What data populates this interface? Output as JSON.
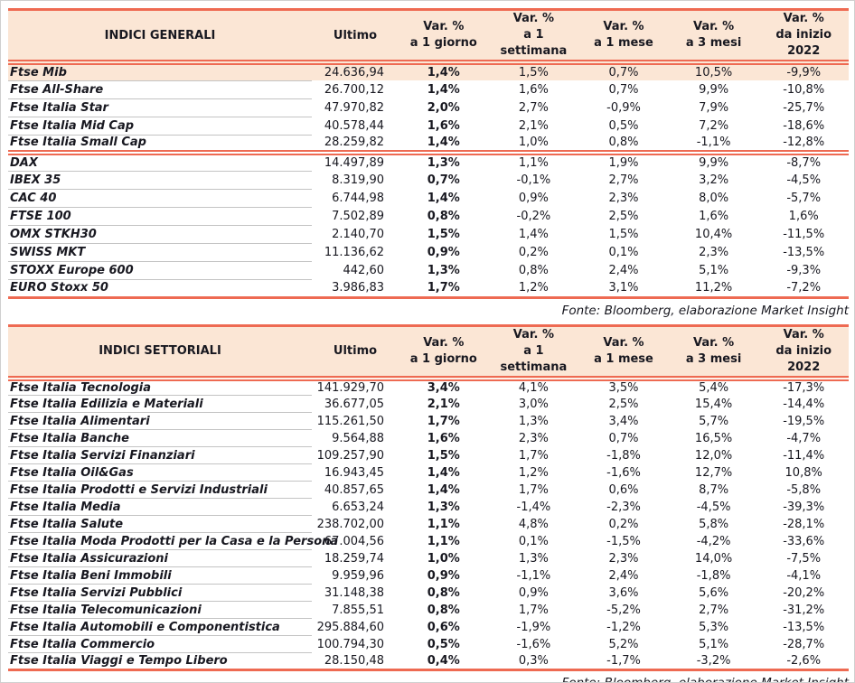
{
  "colors": {
    "accent_line": "#ee6a52",
    "header_background": "#fbe6d5",
    "highlight_row_background": "#fbe6d5",
    "text": "#181820",
    "row_separator": "#c3c3c3"
  },
  "source_note": "Fonte: Bloomberg, elaborazione Market Insight",
  "column_headers": {
    "ultimo": "Ultimo",
    "var_columns": [
      {
        "line1": "Var. %",
        "line2": "a 1 giorno"
      },
      {
        "line1": "Var. %",
        "line2": "a 1 settimana"
      },
      {
        "line1": "Var. %",
        "line2": "a 1 mese"
      },
      {
        "line1": "Var. %",
        "line2": "a 3 mesi"
      },
      {
        "line1": "Var. %",
        "line2": "da inizio 2022"
      }
    ]
  },
  "tables": [
    {
      "title": "INDICI GENERALI",
      "rows": [
        {
          "name": "Ftse Mib",
          "ultimo": "24.636,94",
          "d1": "1,4%",
          "w1": "1,5%",
          "m1": "0,7%",
          "m3": "10,5%",
          "ytd": "-9,9%",
          "highlight": true
        },
        {
          "name": "Ftse All-Share",
          "ultimo": "26.700,12",
          "d1": "1,4%",
          "w1": "1,6%",
          "m1": "0,7%",
          "m3": "9,9%",
          "ytd": "-10,8%"
        },
        {
          "name": "Ftse Italia Star",
          "ultimo": "47.970,82",
          "d1": "2,0%",
          "w1": "2,7%",
          "m1": "-0,9%",
          "m3": "7,9%",
          "ytd": "-25,7%"
        },
        {
          "name": "Ftse Italia Mid Cap",
          "ultimo": "40.578,44",
          "d1": "1,6%",
          "w1": "2,1%",
          "m1": "0,5%",
          "m3": "7,2%",
          "ytd": "-18,6%"
        },
        {
          "name": "Ftse Italia Small Cap",
          "ultimo": "28.259,82",
          "d1": "1,4%",
          "w1": "1,0%",
          "m1": "0,8%",
          "m3": "-1,1%",
          "ytd": "-12,8%",
          "divider_after": true
        },
        {
          "name": "DAX",
          "ultimo": "14.497,89",
          "d1": "1,3%",
          "w1": "1,1%",
          "m1": "1,9%",
          "m3": "9,9%",
          "ytd": "-8,7%"
        },
        {
          "name": "IBEX 35",
          "ultimo": "8.319,90",
          "d1": "0,7%",
          "w1": "-0,1%",
          "m1": "2,7%",
          "m3": "3,2%",
          "ytd": "-4,5%"
        },
        {
          "name": "CAC 40",
          "ultimo": "6.744,98",
          "d1": "1,4%",
          "w1": "0,9%",
          "m1": "2,3%",
          "m3": "8,0%",
          "ytd": "-5,7%"
        },
        {
          "name": "FTSE 100",
          "ultimo": "7.502,89",
          "d1": "0,8%",
          "w1": "-0,2%",
          "m1": "2,5%",
          "m3": "1,6%",
          "ytd": "1,6%"
        },
        {
          "name": "OMX STKH30",
          "ultimo": "2.140,70",
          "d1": "1,5%",
          "w1": "1,4%",
          "m1": "1,5%",
          "m3": "10,4%",
          "ytd": "-11,5%"
        },
        {
          "name": "SWISS MKT",
          "ultimo": "11.136,62",
          "d1": "0,9%",
          "w1": "0,2%",
          "m1": "0,1%",
          "m3": "2,3%",
          "ytd": "-13,5%"
        },
        {
          "name": "STOXX Europe 600",
          "ultimo": "442,60",
          "d1": "1,3%",
          "w1": "0,8%",
          "m1": "2,4%",
          "m3": "5,1%",
          "ytd": "-9,3%"
        },
        {
          "name": "EURO Stoxx 50",
          "ultimo": "3.986,83",
          "d1": "1,7%",
          "w1": "1,2%",
          "m1": "3,1%",
          "m3": "11,2%",
          "ytd": "-7,2%",
          "last": true
        }
      ]
    },
    {
      "title": "INDICI SETTORIALI",
      "rows": [
        {
          "name": "Ftse Italia Tecnologia",
          "ultimo": "141.929,70",
          "d1": "3,4%",
          "w1": "4,1%",
          "m1": "3,5%",
          "m3": "5,4%",
          "ytd": "-17,3%"
        },
        {
          "name": "Ftse Italia Edilizia e Materiali",
          "ultimo": "36.677,05",
          "d1": "2,1%",
          "w1": "3,0%",
          "m1": "2,5%",
          "m3": "15,4%",
          "ytd": "-14,4%"
        },
        {
          "name": "Ftse Italia Alimentari",
          "ultimo": "115.261,50",
          "d1": "1,7%",
          "w1": "1,3%",
          "m1": "3,4%",
          "m3": "5,7%",
          "ytd": "-19,5%"
        },
        {
          "name": "Ftse Italia Banche",
          "ultimo": "9.564,88",
          "d1": "1,6%",
          "w1": "2,3%",
          "m1": "0,7%",
          "m3": "16,5%",
          "ytd": "-4,7%"
        },
        {
          "name": "Ftse Italia Servizi Finanziari",
          "ultimo": "109.257,90",
          "d1": "1,5%",
          "w1": "1,7%",
          "m1": "-1,8%",
          "m3": "12,0%",
          "ytd": "-11,4%"
        },
        {
          "name": "Ftse Italia Oil&Gas",
          "ultimo": "16.943,45",
          "d1": "1,4%",
          "w1": "1,2%",
          "m1": "-1,6%",
          "m3": "12,7%",
          "ytd": "10,8%"
        },
        {
          "name": "Ftse Italia Prodotti e Servizi Industriali",
          "ultimo": "40.857,65",
          "d1": "1,4%",
          "w1": "1,7%",
          "m1": "0,6%",
          "m3": "8,7%",
          "ytd": "-5,8%"
        },
        {
          "name": "Ftse Italia Media",
          "ultimo": "6.653,24",
          "d1": "1,3%",
          "w1": "-1,4%",
          "m1": "-2,3%",
          "m3": "-4,5%",
          "ytd": "-39,3%"
        },
        {
          "name": "Ftse Italia Salute",
          "ultimo": "238.702,00",
          "d1": "1,1%",
          "w1": "4,8%",
          "m1": "0,2%",
          "m3": "5,8%",
          "ytd": "-28,1%"
        },
        {
          "name": "Ftse Italia Moda Prodotti per la Casa e la Persona",
          "ultimo": "67.004,56",
          "d1": "1,1%",
          "w1": "0,1%",
          "m1": "-1,5%",
          "m3": "-4,2%",
          "ytd": "-33,6%"
        },
        {
          "name": "Ftse Italia Assicurazioni",
          "ultimo": "18.259,74",
          "d1": "1,0%",
          "w1": "1,3%",
          "m1": "2,3%",
          "m3": "14,0%",
          "ytd": "-7,5%"
        },
        {
          "name": "Ftse Italia Beni Immobili",
          "ultimo": "9.959,96",
          "d1": "0,9%",
          "w1": "-1,1%",
          "m1": "2,4%",
          "m3": "-1,8%",
          "ytd": "-4,1%"
        },
        {
          "name": "Ftse Italia Servizi Pubblici",
          "ultimo": "31.148,38",
          "d1": "0,8%",
          "w1": "0,9%",
          "m1": "3,6%",
          "m3": "5,6%",
          "ytd": "-20,2%"
        },
        {
          "name": "Ftse Italia Telecomunicazioni",
          "ultimo": "7.855,51",
          "d1": "0,8%",
          "w1": "1,7%",
          "m1": "-5,2%",
          "m3": "2,7%",
          "ytd": "-31,2%"
        },
        {
          "name": "Ftse Italia Automobili e Componentistica",
          "ultimo": "295.884,60",
          "d1": "0,6%",
          "w1": "-1,9%",
          "m1": "-1,2%",
          "m3": "5,3%",
          "ytd": "-13,5%"
        },
        {
          "name": "Ftse Italia Commercio",
          "ultimo": "100.794,30",
          "d1": "0,5%",
          "w1": "-1,6%",
          "m1": "5,2%",
          "m3": "5,1%",
          "ytd": "-28,7%"
        },
        {
          "name": "Ftse Italia Viaggi e Tempo Libero",
          "ultimo": "28.150,48",
          "d1": "0,4%",
          "w1": "0,3%",
          "m1": "-1,7%",
          "m3": "-3,2%",
          "ytd": "-2,6%",
          "last": true
        }
      ]
    }
  ]
}
